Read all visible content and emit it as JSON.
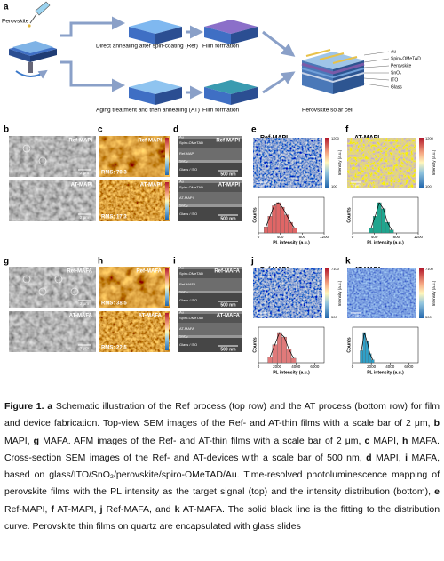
{
  "panel_a": {
    "label": "a",
    "perovskite": "Perovskite",
    "ref_route": "Direct annealing after spin-coating (Ref)",
    "at_route": "Aging treatment and then annealing (AT)",
    "film_formation": [
      "Film formation",
      "Film formation"
    ],
    "cell": "Perovskite solar cell",
    "layers": [
      "Au",
      "Spiro-OMeTAD",
      "Perovskite",
      "SnO₂",
      "ITO",
      "Glass"
    ]
  },
  "sem_panels": [
    {
      "label": "b",
      "images": [
        {
          "title": "Ref-MAPI",
          "scale": "2 μm"
        },
        {
          "title": "AT-MAPI",
          "scale": "2 μm"
        }
      ]
    },
    {
      "label": "g",
      "images": [
        {
          "title": "Ref-MAFA",
          "scale": "2 μm"
        },
        {
          "title": "AT-MAFA",
          "scale": "2 μm"
        }
      ]
    }
  ],
  "afm_panels": [
    {
      "label": "c",
      "images": [
        {
          "title": "Ref-MAPI",
          "rms": "RMS: 70.3"
        },
        {
          "title": "AT-MAPI",
          "rms": "RMS: 17.3"
        }
      ]
    },
    {
      "label": "h",
      "images": [
        {
          "title": "Ref-MAFA",
          "rms": "RMS: 38.5"
        },
        {
          "title": "AT-MAFA",
          "rms": "RMS: 22.5"
        }
      ]
    }
  ],
  "cross_panels": [
    {
      "label": "d",
      "images": [
        {
          "title": "Ref-MAPI",
          "layers": [
            "Au",
            "Spiro-OMeTAD",
            "Ref-MAPI",
            "SnO₂",
            "Glass / ITO"
          ],
          "scale": "500 nm"
        },
        {
          "title": "AT-MAPI",
          "layers": [
            "Au",
            "Spiro-OMeTAD",
            "AT-MAPI",
            "SnO₂",
            "Glass / ITO"
          ],
          "scale": "500 nm"
        }
      ]
    },
    {
      "label": "i",
      "images": [
        {
          "title": "Ref-MAFA",
          "layers": [
            "Au",
            "Spiro-OMeTAD",
            "Ref-MAFA",
            "SnO₂",
            "Glass / ITO"
          ],
          "scale": "500 nm"
        },
        {
          "title": "AT-MAFA",
          "layers": [
            "Au",
            "Spiro-OMeTAD",
            "AT-MAFA",
            "SnO₂",
            "Glass / ITO"
          ],
          "scale": "500 nm"
        }
      ]
    }
  ],
  "pl_panels": [
    {
      "label": "e",
      "title": "Ref-MAPI",
      "colorbar": {
        "max": 1200,
        "min": 100,
        "label": "Intensity (a.u.)"
      },
      "scale": "2 μm",
      "histogram": {
        "bins": [
          100,
          175,
          250,
          325,
          400,
          475,
          550,
          625,
          700
        ],
        "counts": [
          20,
          55,
          90,
          100,
          85,
          60,
          35,
          15
        ],
        "xlim": [
          0,
          1200
        ],
        "xticks": [
          0,
          400,
          800,
          1200
        ],
        "xlabel": "PL intensity (a.u.)",
        "ylabel": "Counts"
      }
    },
    {
      "label": "f",
      "title": "AT-MAPI",
      "colorbar": {
        "max": 1200,
        "min": 100,
        "label": "Intensity (a.u.)"
      },
      "scale": "2 μm",
      "histogram": {
        "bins": [
          300,
          375,
          450,
          525,
          600,
          675,
          750
        ],
        "counts": [
          15,
          55,
          100,
          80,
          35,
          10
        ],
        "xlim": [
          0,
          1200
        ],
        "xticks": [
          0,
          400,
          800,
          1200
        ],
        "xlabel": "PL intensity (a.u.)",
        "ylabel": "Counts"
      }
    },
    {
      "label": "j",
      "title": "Ref-MAFA",
      "colorbar": {
        "max": 7100,
        "min": 500,
        "label": "Intensity (a.u.)"
      },
      "scale": "2 μm",
      "histogram": {
        "bins": [
          1000,
          1500,
          2000,
          2500,
          3000,
          3500,
          4000
        ],
        "counts": [
          20,
          60,
          100,
          85,
          45,
          15
        ],
        "xlim": [
          0,
          7000
        ],
        "xticks": [
          0,
          2000,
          4000,
          6000
        ],
        "xlabel": "PL intensity (a.u.)",
        "ylabel": "Counts"
      }
    },
    {
      "label": "k",
      "title": "AT-MAFA",
      "colorbar": {
        "max": 7100,
        "min": 500,
        "label": "Intensity (a.u.)"
      },
      "scale": "2 μm",
      "histogram": {
        "bins": [
          800,
          1100,
          1400,
          1700,
          2000,
          2300
        ],
        "counts": [
          40,
          100,
          70,
          30,
          10
        ],
        "xlim": [
          0,
          7000
        ],
        "xticks": [
          0,
          2000,
          4000,
          6000
        ],
        "xlabel": "PL intensity (a.u.)",
        "ylabel": "Counts"
      }
    }
  ],
  "caption": [
    "Figure 1.",
    "a",
    "Schematic illustration of the Ref process (top row) and the AT process (bottom row) for film and device fabrication. Top-view SEM images of the Ref- and AT-thin films with a scale bar of 2 μm,",
    "b",
    "MAPI,",
    "g",
    "MAFA. AFM images of the Ref- and AT-thin films with a scale bar of 2 μm,",
    "c",
    "MAPI,",
    "h",
    "MAFA. Cross-section SEM images of the Ref- and AT-devices with a scale bar of 500 nm,",
    "d",
    "MAPI,",
    "i",
    "MAFA, based on glass/ITO/SnO₂/perovskite/spiro-OMeTAD/Au. Time-resolved photoluminescence mapping of perovskite films with the PL intensity as the target signal (top) and the intensity distribution (bottom),",
    "e",
    "Ref-MAPI,",
    "f",
    "AT-MAPI,",
    "j",
    "Ref-MAFA, and",
    "k",
    "AT-MAFA. The solid black line is the fitting to the distribution curve. Perovskite thin films on quartz are encapsulated with glass slides"
  ]
}
